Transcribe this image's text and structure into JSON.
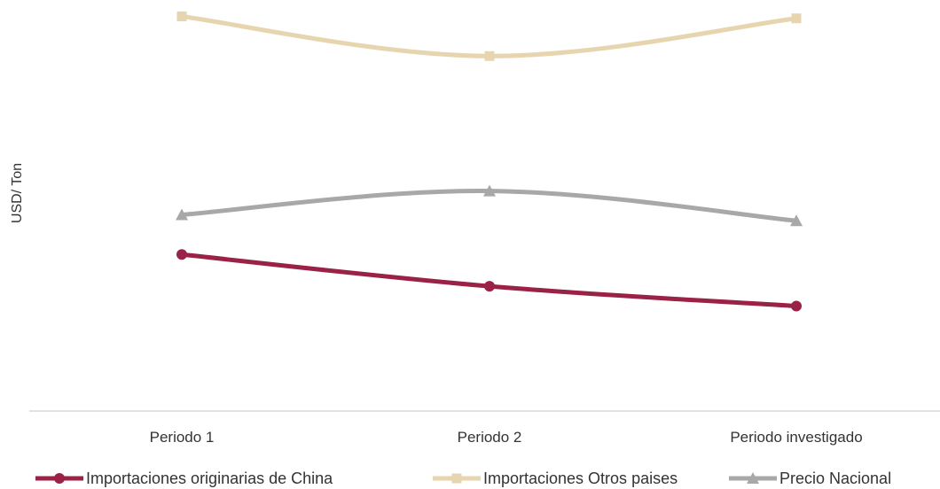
{
  "chart_data": {
    "type": "line",
    "title": "",
    "xlabel": "",
    "ylabel": "USD/ Ton",
    "categories": [
      "Periodo 1",
      "Periodo 2",
      "Periodo investigado"
    ],
    "ylim": [
      0,
      100
    ],
    "y_axis_values_shown": false,
    "grid": false,
    "legend_position": "bottom",
    "series": [
      {
        "name": "Importaciones originarias de China",
        "values": [
          39,
          31,
          26
        ],
        "color": "#9B2247",
        "marker": "circle"
      },
      {
        "name": "Importaciones Otros paises",
        "values": [
          99,
          89,
          98.5
        ],
        "color": "#E6D5AF",
        "marker": "square"
      },
      {
        "name": "Precio Nacional",
        "values": [
          49,
          55,
          47.5
        ],
        "color": "#A8A8A8",
        "marker": "triangle"
      }
    ]
  }
}
